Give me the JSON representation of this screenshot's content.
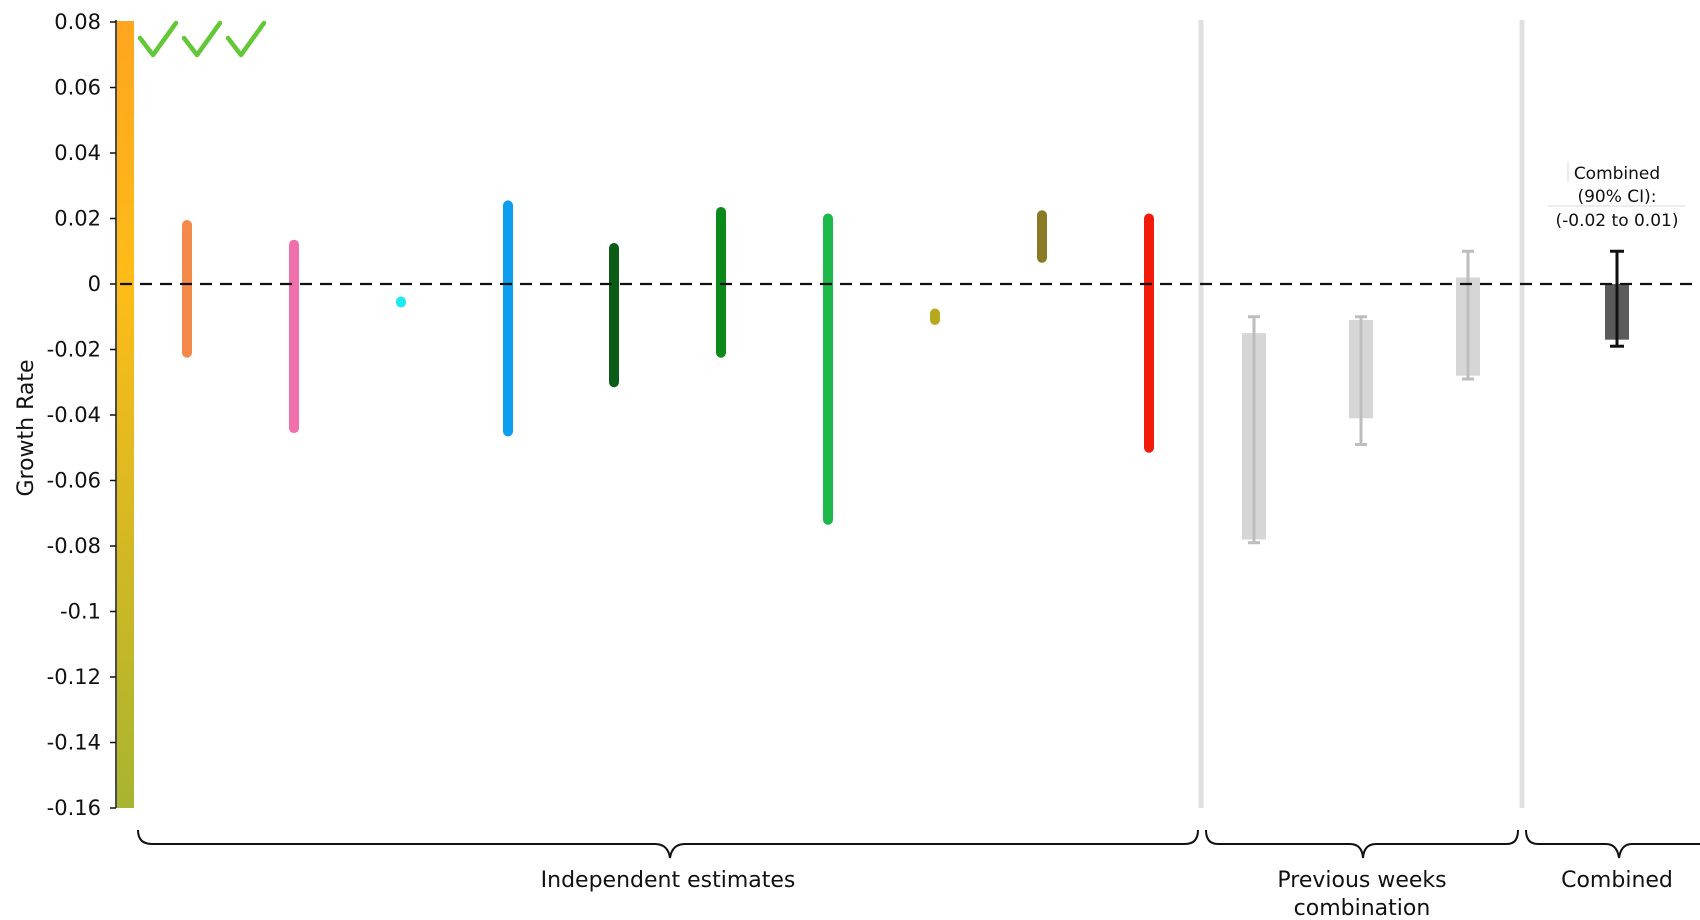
{
  "chart_data": {
    "type": "bar",
    "ylabel": "Growth Rate",
    "ylim": [
      -0.16,
      0.08
    ],
    "yticks": [
      0.08,
      0.06,
      0.04,
      0.02,
      0,
      -0.02,
      -0.04,
      -0.06,
      -0.08,
      -0.1,
      -0.12,
      -0.14,
      -0.16
    ],
    "ytick_labels": [
      "0.08",
      "0.06",
      "0.04",
      "0.02",
      "0",
      "-0.02",
      "-0.04",
      "-0.06",
      "-0.08",
      "-0.1",
      "-0.12",
      "-0.14",
      "-0.16"
    ],
    "reference_line": 0,
    "color_scale": {
      "top": "#ffa51f",
      "mid": "#ffbc18",
      "bottom": "#a7b530"
    },
    "checkmarks": 3,
    "checkmark_color": "#62c838",
    "independent_estimates": [
      {
        "low": -0.021,
        "high": 0.018,
        "color": "#f5894a"
      },
      {
        "low": -0.044,
        "high": 0.012,
        "color": "#f06fad"
      },
      {
        "low": -0.0055,
        "high": -0.0055,
        "color": "#1ee8f0"
      },
      {
        "low": -0.045,
        "high": 0.024,
        "color": "#0e9ef0"
      },
      {
        "low": -0.03,
        "high": 0.011,
        "color": "#0b5c17"
      },
      {
        "low": -0.021,
        "high": 0.022,
        "color": "#0b8a1a"
      },
      {
        "low": -0.072,
        "high": 0.02,
        "color": "#1cb84a"
      },
      {
        "low": -0.011,
        "high": -0.009,
        "color": "#b8a81e"
      },
      {
        "low": 0.008,
        "high": 0.021,
        "color": "#8a7a26"
      },
      {
        "low": -0.05,
        "high": 0.02,
        "color": "#f21a0a"
      }
    ],
    "previous_weeks": [
      {
        "box_low": -0.078,
        "box_high": -0.015,
        "whisker_low": -0.079,
        "whisker_high": -0.01
      },
      {
        "box_low": -0.041,
        "box_high": -0.011,
        "whisker_low": -0.049,
        "whisker_high": -0.01
      },
      {
        "box_low": -0.028,
        "box_high": 0.002,
        "whisker_low": -0.029,
        "whisker_high": 0.01
      }
    ],
    "combined": {
      "box_low": -0.017,
      "box_high": 0.0,
      "whisker_low": -0.019,
      "whisker_high": 0.01
    },
    "group_labels": {
      "independent": "Independent estimates",
      "previous": [
        "Previous weeks",
        "combination"
      ],
      "combined": "Combined"
    },
    "annotation": [
      "Combined",
      "(90% CI):",
      "(-0.02 to 0.01)"
    ]
  }
}
